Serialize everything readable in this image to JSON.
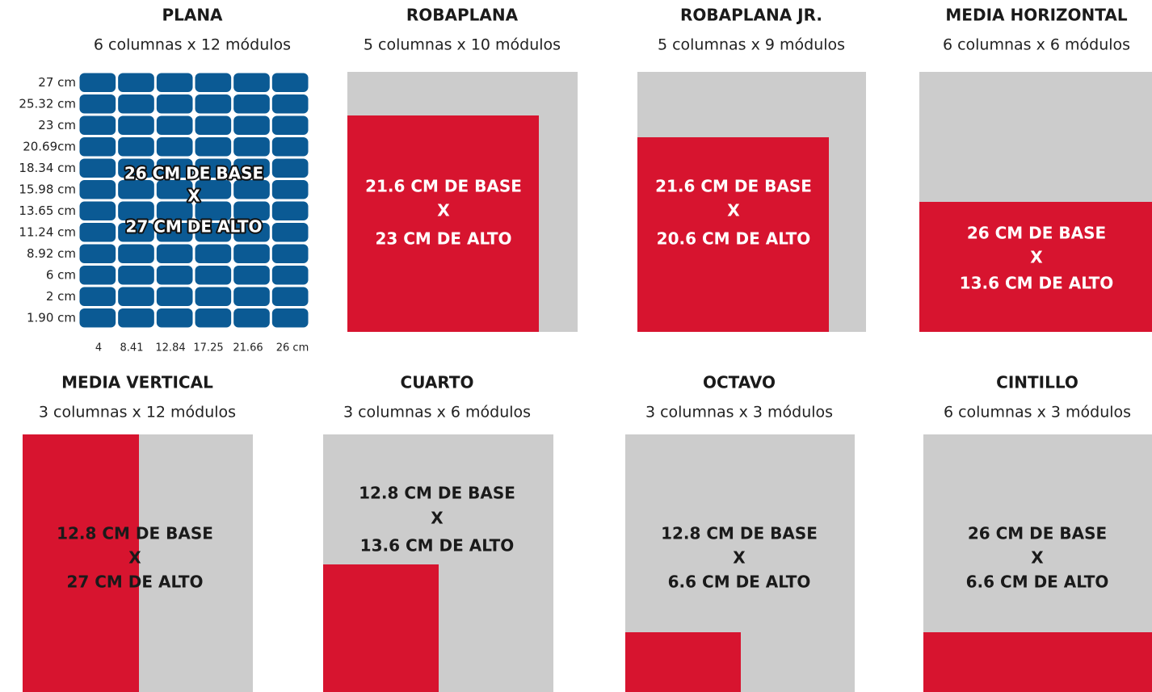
{
  "panels": [
    {
      "title": "PLANA",
      "subtitle": "6 columnas x 12 módulos",
      "lines": [
        "26 CM DE BASE",
        "X",
        "27 CM DE ALTO"
      ]
    },
    {
      "title": "ROBAPLANA",
      "subtitle": "5 columnas x 10 módulos",
      "lines": [
        "21.6 CM DE BASE",
        "X",
        "23 CM DE ALTO"
      ]
    },
    {
      "title": "ROBAPLANA JR.",
      "subtitle": "5 columnas x 9 módulos",
      "lines": [
        "21.6 CM DE BASE",
        "X",
        "20.6 CM DE ALTO"
      ]
    },
    {
      "title": "MEDIA HORIZONTAL",
      "subtitle": "6 columnas x 6 módulos",
      "lines": [
        "26 CM DE BASE",
        "X",
        "13.6 CM DE ALTO"
      ]
    },
    {
      "title": "MEDIA VERTICAL",
      "subtitle": "3 columnas x 12 módulos",
      "lines": [
        "12.8 CM DE BASE",
        "X",
        "27 CM DE ALTO"
      ]
    },
    {
      "title": "CUARTO",
      "subtitle": "3 columnas x 6 módulos",
      "lines": [
        "12.8 CM DE BASE",
        "X",
        "13.6 CM DE ALTO"
      ]
    },
    {
      "title": "OCTAVO",
      "subtitle": "3 columnas x 3 módulos",
      "lines": [
        "12.8 CM DE BASE",
        "X",
        "6.6 CM DE ALTO"
      ]
    },
    {
      "title": "CINTILLO",
      "subtitle": "6 columnas x 3 módulos",
      "lines": [
        "26 CM DE BASE",
        "X",
        "6.6 CM DE ALTO"
      ]
    }
  ],
  "plana_grid": {
    "row_labels": [
      "27 cm",
      "25.32 cm",
      "23 cm",
      "20.69cm",
      "18.34 cm",
      "15.98 cm",
      "13.65 cm",
      "11.24  cm",
      "8.92 cm",
      "6 cm",
      "2 cm",
      "1.90 cm"
    ],
    "column_labels": [
      "4",
      "8.41",
      "12.84",
      "17.25",
      "21.66",
      "26 cm"
    ]
  }
}
